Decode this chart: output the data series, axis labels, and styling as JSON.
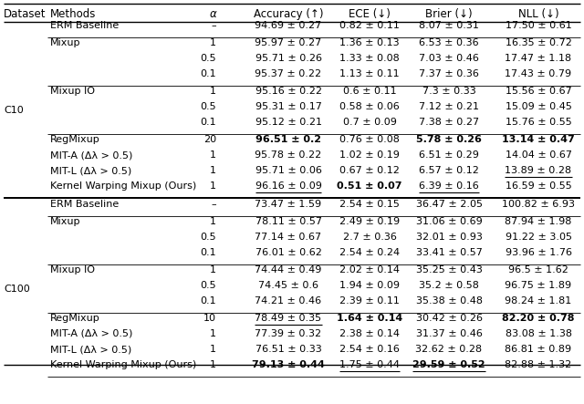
{
  "col_headers": [
    "Dataset",
    "Methods",
    "α",
    "Accuracy (↑)",
    "ECE (↓)",
    "Brier (↓)",
    "NLL (↓)"
  ],
  "rows": [
    {
      "dataset": "C10",
      "method": "ERM Baseline",
      "alpha": "–",
      "acc": "94.69 ± 0.27",
      "ece": "0.82 ± 0.11",
      "brier": "8.07 ± 0.31",
      "nll": "17.50 ± 0.61",
      "bold_acc": false,
      "bold_ece": false,
      "bold_brier": false,
      "bold_nll": false,
      "ul_acc": false,
      "ul_ece": false,
      "ul_brier": false,
      "ul_nll": false
    },
    {
      "dataset": "C10",
      "method": "Mixup",
      "alpha": "1",
      "acc": "95.97 ± 0.27",
      "ece": "1.36 ± 0.13",
      "brier": "6.53 ± 0.36",
      "nll": "16.35 ± 0.72",
      "bold_acc": false,
      "bold_ece": false,
      "bold_brier": false,
      "bold_nll": false,
      "ul_acc": false,
      "ul_ece": false,
      "ul_brier": false,
      "ul_nll": false
    },
    {
      "dataset": "C10",
      "method": "",
      "alpha": "0.5",
      "acc": "95.71 ± 0.26",
      "ece": "1.33 ± 0.08",
      "brier": "7.03 ± 0.46",
      "nll": "17.47 ± 1.18",
      "bold_acc": false,
      "bold_ece": false,
      "bold_brier": false,
      "bold_nll": false,
      "ul_acc": false,
      "ul_ece": false,
      "ul_brier": false,
      "ul_nll": false
    },
    {
      "dataset": "C10",
      "method": "",
      "alpha": "0.1",
      "acc": "95.37 ± 0.22",
      "ece": "1.13 ± 0.11",
      "brier": "7.37 ± 0.36",
      "nll": "17.43 ± 0.79",
      "bold_acc": false,
      "bold_ece": false,
      "bold_brier": false,
      "bold_nll": false,
      "ul_acc": false,
      "ul_ece": false,
      "ul_brier": false,
      "ul_nll": false
    },
    {
      "dataset": "C10",
      "method": "Mixup IO",
      "alpha": "1",
      "acc": "95.16 ± 0.22",
      "ece": "0.6 ± 0.11",
      "brier": "7.3 ± 0.33",
      "nll": "15.56 ± 0.67",
      "bold_acc": false,
      "bold_ece": false,
      "bold_brier": false,
      "bold_nll": false,
      "ul_acc": false,
      "ul_ece": false,
      "ul_brier": false,
      "ul_nll": false
    },
    {
      "dataset": "C10",
      "method": "",
      "alpha": "0.5",
      "acc": "95.31 ± 0.17",
      "ece": "0.58 ± 0.06",
      "brier": "7.12 ± 0.21",
      "nll": "15.09 ± 0.45",
      "bold_acc": false,
      "bold_ece": false,
      "bold_brier": false,
      "bold_nll": false,
      "ul_acc": false,
      "ul_ece": false,
      "ul_brier": false,
      "ul_nll": false
    },
    {
      "dataset": "C10",
      "method": "",
      "alpha": "0.1",
      "acc": "95.12 ± 0.21",
      "ece": "0.7 ± 0.09",
      "brier": "7.38 ± 0.27",
      "nll": "15.76 ± 0.55",
      "bold_acc": false,
      "bold_ece": false,
      "bold_brier": false,
      "bold_nll": false,
      "ul_acc": false,
      "ul_ece": false,
      "ul_brier": false,
      "ul_nll": false
    },
    {
      "dataset": "C10",
      "method": "RegMixup",
      "alpha": "20",
      "acc": "96.51 ± 0.2",
      "ece": "0.76 ± 0.08",
      "brier": "5.78 ± 0.26",
      "nll": "13.14 ± 0.47",
      "bold_acc": true,
      "bold_ece": false,
      "bold_brier": true,
      "bold_nll": true,
      "ul_acc": false,
      "ul_ece": false,
      "ul_brier": false,
      "ul_nll": false
    },
    {
      "dataset": "C10",
      "method": "MIT-A (Δλ > 0.5)",
      "alpha": "1",
      "acc": "95.78 ± 0.22",
      "ece": "1.02 ± 0.19",
      "brier": "6.51 ± 0.29",
      "nll": "14.04 ± 0.67",
      "bold_acc": false,
      "bold_ece": false,
      "bold_brier": false,
      "bold_nll": false,
      "ul_acc": false,
      "ul_ece": false,
      "ul_brier": false,
      "ul_nll": false
    },
    {
      "dataset": "C10",
      "method": "MIT-L (Δλ > 0.5)",
      "alpha": "1",
      "acc": "95.71 ± 0.06",
      "ece": "0.67 ± 0.12",
      "brier": "6.57 ± 0.12",
      "nll": "13.89 ± 0.28",
      "bold_acc": false,
      "bold_ece": false,
      "bold_brier": false,
      "bold_nll": false,
      "ul_acc": false,
      "ul_ece": false,
      "ul_brier": false,
      "ul_nll": true
    },
    {
      "dataset": "C10",
      "method": "Kernel Warping Mixup (Ours)",
      "alpha": "1",
      "acc": "96.16 ± 0.09",
      "ece": "0.51 ± 0.07",
      "brier": "6.39 ± 0.16",
      "nll": "16.59 ± 0.55",
      "bold_acc": false,
      "bold_ece": true,
      "bold_brier": false,
      "bold_nll": false,
      "ul_acc": true,
      "ul_ece": false,
      "ul_brier": true,
      "ul_nll": false
    },
    {
      "dataset": "C100",
      "method": "ERM Baseline",
      "alpha": "–",
      "acc": "73.47 ± 1.59",
      "ece": "2.54 ± 0.15",
      "brier": "36.47 ± 2.05",
      "nll": "100.82 ± 6.93",
      "bold_acc": false,
      "bold_ece": false,
      "bold_brier": false,
      "bold_nll": false,
      "ul_acc": false,
      "ul_ece": false,
      "ul_brier": false,
      "ul_nll": false
    },
    {
      "dataset": "C100",
      "method": "Mixup",
      "alpha": "1",
      "acc": "78.11 ± 0.57",
      "ece": "2.49 ± 0.19",
      "brier": "31.06 ± 0.69",
      "nll": "87.94 ± 1.98",
      "bold_acc": false,
      "bold_ece": false,
      "bold_brier": false,
      "bold_nll": false,
      "ul_acc": false,
      "ul_ece": false,
      "ul_brier": false,
      "ul_nll": false
    },
    {
      "dataset": "C100",
      "method": "",
      "alpha": "0.5",
      "acc": "77.14 ± 0.67",
      "ece": "2.7 ± 0.36",
      "brier": "32.01 ± 0.93",
      "nll": "91.22 ± 3.05",
      "bold_acc": false,
      "bold_ece": false,
      "bold_brier": false,
      "bold_nll": false,
      "ul_acc": false,
      "ul_ece": false,
      "ul_brier": false,
      "ul_nll": false
    },
    {
      "dataset": "C100",
      "method": "",
      "alpha": "0.1",
      "acc": "76.01 ± 0.62",
      "ece": "2.54 ± 0.24",
      "brier": "33.41 ± 0.57",
      "nll": "93.96 ± 1.76",
      "bold_acc": false,
      "bold_ece": false,
      "bold_brier": false,
      "bold_nll": false,
      "ul_acc": false,
      "ul_ece": false,
      "ul_brier": false,
      "ul_nll": false
    },
    {
      "dataset": "C100",
      "method": "Mixup IO",
      "alpha": "1",
      "acc": "74.44 ± 0.49",
      "ece": "2.02 ± 0.14",
      "brier": "35.25 ± 0.43",
      "nll": "96.5 ± 1.62",
      "bold_acc": false,
      "bold_ece": false,
      "bold_brier": false,
      "bold_nll": false,
      "ul_acc": false,
      "ul_ece": false,
      "ul_brier": false,
      "ul_nll": false
    },
    {
      "dataset": "C100",
      "method": "",
      "alpha": "0.5",
      "acc": "74.45 ± 0.6",
      "ece": "1.94 ± 0.09",
      "brier": "35.2 ± 0.58",
      "nll": "96.75 ± 1.89",
      "bold_acc": false,
      "bold_ece": false,
      "bold_brier": false,
      "bold_nll": false,
      "ul_acc": false,
      "ul_ece": false,
      "ul_brier": false,
      "ul_nll": false
    },
    {
      "dataset": "C100",
      "method": "",
      "alpha": "0.1",
      "acc": "74.21 ± 0.46",
      "ece": "2.39 ± 0.11",
      "brier": "35.38 ± 0.48",
      "nll": "98.24 ± 1.81",
      "bold_acc": false,
      "bold_ece": false,
      "bold_brier": false,
      "bold_nll": false,
      "ul_acc": false,
      "ul_ece": false,
      "ul_brier": false,
      "ul_nll": false
    },
    {
      "dataset": "C100",
      "method": "RegMixup",
      "alpha": "10",
      "acc": "78.49 ± 0.35",
      "ece": "1.64 ± 0.14",
      "brier": "30.42 ± 0.26",
      "nll": "82.20 ± 0.78",
      "bold_acc": false,
      "bold_ece": true,
      "bold_brier": false,
      "bold_nll": true,
      "ul_acc": true,
      "ul_ece": false,
      "ul_brier": false,
      "ul_nll": false
    },
    {
      "dataset": "C100",
      "method": "MIT-A (Δλ > 0.5)",
      "alpha": "1",
      "acc": "77.39 ± 0.32",
      "ece": "2.38 ± 0.14",
      "brier": "31.37 ± 0.46",
      "nll": "83.08 ± 1.38",
      "bold_acc": false,
      "bold_ece": false,
      "bold_brier": false,
      "bold_nll": false,
      "ul_acc": false,
      "ul_ece": false,
      "ul_brier": false,
      "ul_nll": false
    },
    {
      "dataset": "C100",
      "method": "MIT-L (Δλ > 0.5)",
      "alpha": "1",
      "acc": "76.51 ± 0.33",
      "ece": "2.54 ± 0.16",
      "brier": "32.62 ± 0.28",
      "nll": "86.81 ± 0.89",
      "bold_acc": false,
      "bold_ece": false,
      "bold_brier": false,
      "bold_nll": false,
      "ul_acc": false,
      "ul_ece": false,
      "ul_brier": false,
      "ul_nll": false
    },
    {
      "dataset": "C100",
      "method": "Kernel Warping Mixup (Ours)",
      "alpha": "1",
      "acc": "79.13 ± 0.44",
      "ece": "1.75 ± 0.44",
      "brier": "29.59 ± 0.52",
      "nll": "82.88 ± 1.32",
      "bold_acc": true,
      "bold_ece": false,
      "bold_brier": true,
      "bold_nll": false,
      "ul_acc": false,
      "ul_ece": true,
      "ul_brier": true,
      "ul_nll": false
    }
  ],
  "thin_sep_after": [
    0,
    3,
    6,
    10,
    11,
    14,
    17,
    21
  ],
  "thick_sep_after": [
    10
  ],
  "bg_color": "#ffffff"
}
